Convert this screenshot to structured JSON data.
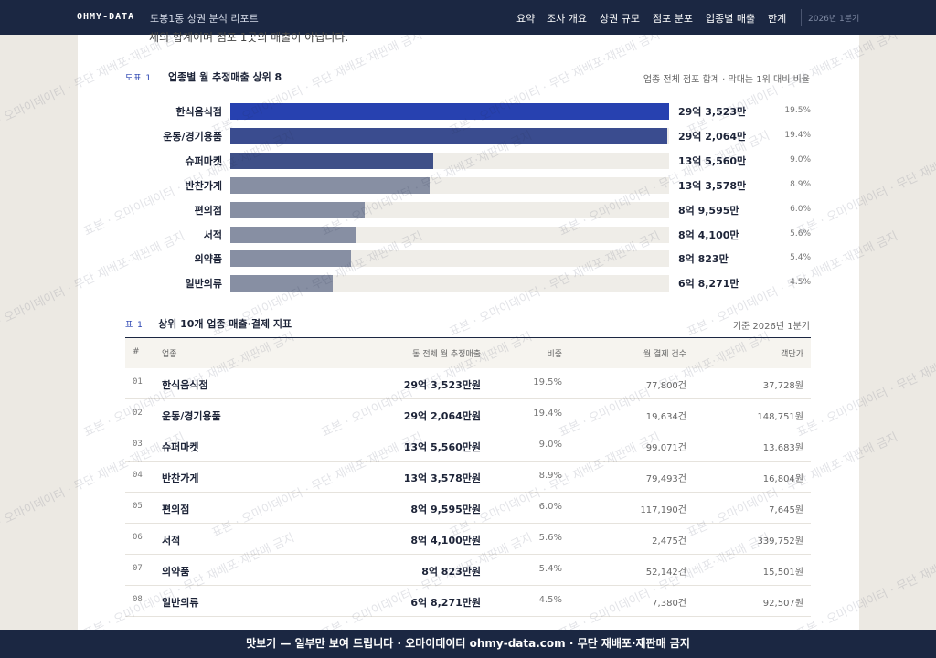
{
  "nav": {
    "brand": "OHMY-DATA",
    "title": "도봉1동 상권 분석 리포트",
    "items": [
      "요약",
      "조사 개요",
      "상권 규모",
      "점포 분포",
      "업종별 매출",
      "한계"
    ],
    "period": "2026년 1분기"
  },
  "intro_tail": "체의 합계이며 점포 1곳의 매출이 아닙니다.",
  "figure": {
    "label": "도표 1",
    "title": "업종별 월 추정매출 상위 8",
    "note": "업종 전체 점포 합계 · 막대는 1위 대비 비율",
    "categories": [
      "한식음식점",
      "운동/경기용품",
      "슈퍼마켓",
      "반찬가게",
      "편의점",
      "서적",
      "의약품",
      "일반의류"
    ],
    "values": [
      293523,
      292064,
      135560,
      133578,
      89595,
      84100,
      80823,
      68271
    ],
    "value_labels": [
      "29억 3,523만",
      "29억 2,064만",
      "13억 5,560만",
      "13억 3,578만",
      "8억 9,595만",
      "8억 4,100만",
      "8억 823만",
      "6억 8,271만"
    ],
    "shares": [
      19.5,
      19.4,
      9.0,
      8.9,
      6.0,
      5.6,
      5.4,
      4.5
    ],
    "share_labels": [
      "19.5%",
      "19.4%",
      "9.0%",
      "8.9%",
      "6.0%",
      "5.6%",
      "5.4%",
      "4.5%"
    ],
    "colors": [
      "#2741b0",
      "#3a4c8f",
      "#3f5088",
      "#878fa3",
      "#878fa3",
      "#878fa3",
      "#878fa3",
      "#878fa3"
    ]
  },
  "table": {
    "label": "표 1",
    "title": "상위 10개 업종 매출·결제 지표",
    "note": "기준 2026년 1분기",
    "headers": [
      "#",
      "업종",
      "동 전체 월 추정매출",
      "비중",
      "월 결제 건수",
      "객단가"
    ],
    "rows": [
      [
        "01",
        "한식음식점",
        "29억 3,523만원",
        "19.5%",
        "77,800건",
        "37,728원"
      ],
      [
        "02",
        "운동/경기용품",
        "29억 2,064만원",
        "19.4%",
        "19,634건",
        "148,751원"
      ],
      [
        "03",
        "슈퍼마켓",
        "13억 5,560만원",
        "9.0%",
        "99,071건",
        "13,683원"
      ],
      [
        "04",
        "반찬가게",
        "13억 3,578만원",
        "8.9%",
        "79,493건",
        "16,804원"
      ],
      [
        "05",
        "편의점",
        "8억 9,595만원",
        "6.0%",
        "117,190건",
        "7,645원"
      ],
      [
        "06",
        "서적",
        "8억 4,100만원",
        "5.6%",
        "2,475건",
        "339,752원"
      ],
      [
        "07",
        "의약품",
        "8억 823만원",
        "5.4%",
        "52,142건",
        "15,501원"
      ],
      [
        "08",
        "일반의류",
        "6억 8,271만원",
        "4.5%",
        "7,380건",
        "92,507원"
      ]
    ]
  },
  "watermark": "표본 · 오마이데이터 · 무단 재배포·재판매 금지",
  "footer": "맛보기 — 일부만 보여 드립니다 · 오마이데이터 ohmy-data.com · 무단 재배포·재판매 금지"
}
